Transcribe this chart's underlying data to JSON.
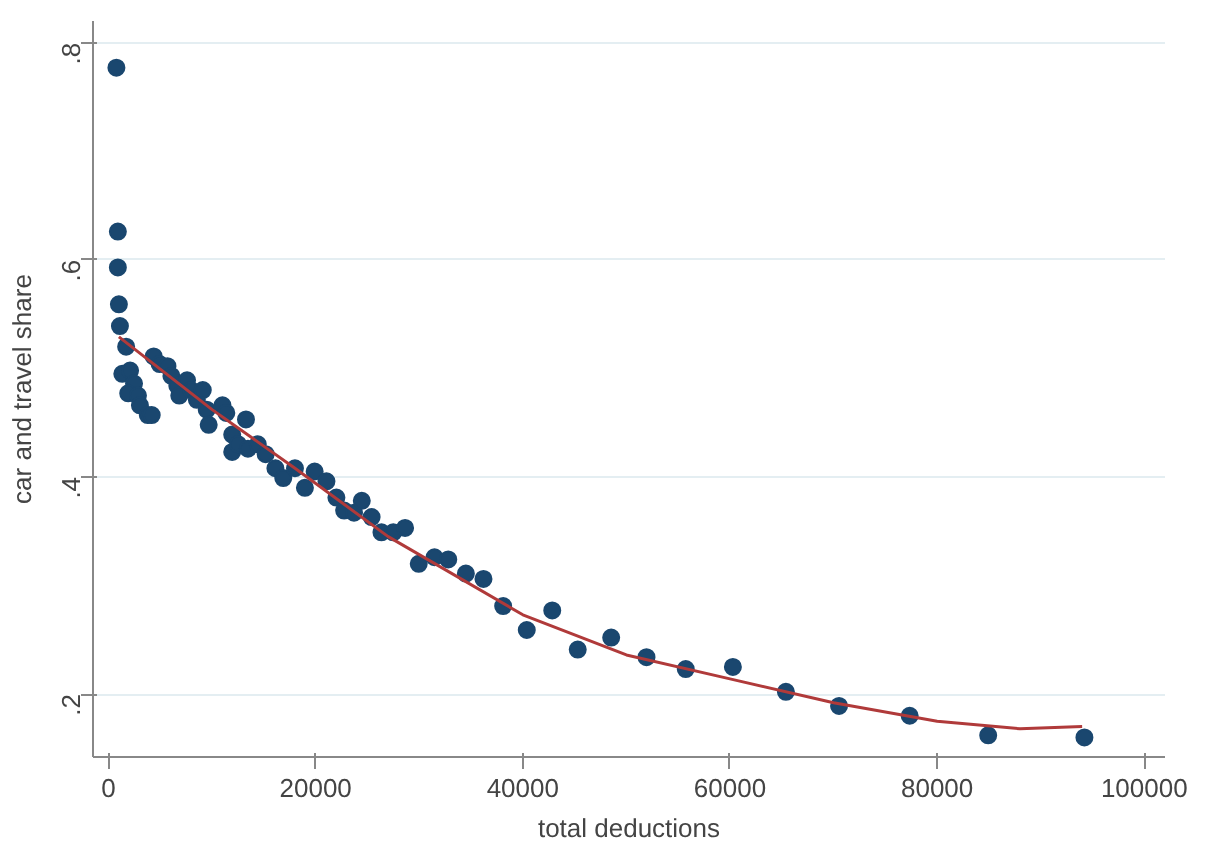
{
  "chart_data": {
    "type": "scatter",
    "xlabel": "total deductions",
    "ylabel": "car and travel share",
    "xlim": [
      -1500,
      102000
    ],
    "ylim": [
      0.142,
      0.82
    ],
    "xticks": [
      0,
      20000,
      40000,
      60000,
      80000,
      100000
    ],
    "yticks": [
      {
        "value": 0.2,
        "label": ".2"
      },
      {
        "value": 0.4,
        "label": ".4"
      },
      {
        "value": 0.6,
        "label": ".6"
      },
      {
        "value": 0.8,
        "label": ".8"
      }
    ],
    "grid": "y",
    "marker": "circle",
    "series": [
      {
        "color": "#1a476f",
        "x": [
          760,
          900,
          900,
          1000,
          1100,
          1700,
          1330,
          2080,
          2460,
          1900,
          2840,
          3030,
          3790,
          4170,
          4360,
          4930,
          5690,
          6070,
          6640,
          6830,
          7580,
          7960,
          8530,
          9100,
          9480,
          9670,
          11000,
          11370,
          11940,
          13270,
          11940,
          12510,
          13460,
          14410,
          15170,
          16110,
          16870,
          18000,
          18960,
          19900,
          21040,
          22000,
          22750,
          23700,
          24450,
          25400,
          26350,
          27490,
          28630,
          29950,
          31470,
          32800,
          34500,
          36200,
          38100,
          40380,
          42840,
          45300,
          48530,
          51940,
          55730,
          60280,
          65400,
          70530,
          77350,
          84930,
          94220
        ],
        "values": [
          0.777,
          0.626,
          0.593,
          0.559,
          0.539,
          0.52,
          0.495,
          0.498,
          0.486,
          0.477,
          0.475,
          0.466,
          0.457,
          0.457,
          0.511,
          0.504,
          0.502,
          0.493,
          0.484,
          0.475,
          0.489,
          0.48,
          0.471,
          0.48,
          0.462,
          0.448,
          0.466,
          0.459,
          0.439,
          0.453,
          0.423,
          0.43,
          0.426,
          0.43,
          0.421,
          0.408,
          0.399,
          0.408,
          0.39,
          0.405,
          0.396,
          0.381,
          0.369,
          0.367,
          0.378,
          0.363,
          0.349,
          0.349,
          0.353,
          0.32,
          0.326,
          0.324,
          0.311,
          0.306,
          0.281,
          0.259,
          0.277,
          0.241,
          0.252,
          0.234,
          0.223,
          0.225,
          0.202,
          0.189,
          0.18,
          0.162,
          0.16
        ]
      },
      {
        "type": "line",
        "color": "#b03a3a",
        "marker": "none",
        "x": [
          1000,
          10000,
          18000,
          27000,
          40000,
          50000,
          60000,
          70000,
          80000,
          88000,
          94000
        ],
        "values": [
          0.529,
          0.462,
          0.408,
          0.345,
          0.273,
          0.236,
          0.214,
          0.192,
          0.175,
          0.168,
          0.17
        ]
      }
    ]
  }
}
